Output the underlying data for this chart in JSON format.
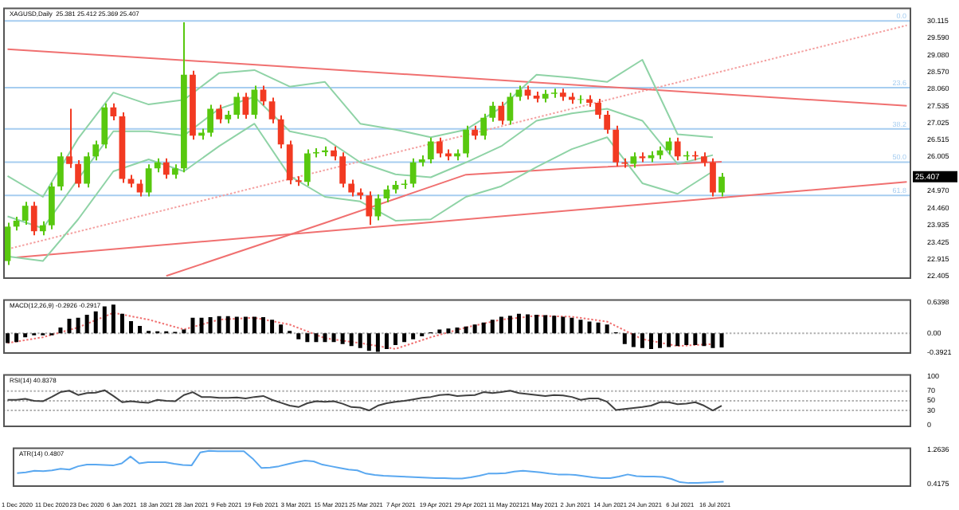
{
  "chart_data": [
    {
      "type": "candlestick",
      "title": "XAGUSD,Daily  25.381 25.412 25.369 25.407",
      "categories": [
        null,
        null,
        null,
        null,
        null,
        null,
        null,
        null,
        null,
        null,
        null,
        null,
        null,
        null,
        null,
        null,
        null,
        null,
        null,
        null,
        null,
        null,
        null,
        null,
        null,
        null,
        null,
        null,
        null,
        null,
        null,
        null,
        null,
        null,
        null,
        null,
        null,
        null,
        null,
        null,
        null,
        null,
        null,
        null,
        null,
        null,
        null,
        null,
        null,
        null,
        null,
        null,
        null,
        null,
        null,
        null,
        null,
        null,
        null,
        null,
        null,
        null,
        null,
        null,
        null,
        null,
        null,
        null,
        null,
        null,
        null,
        null,
        null,
        null,
        null,
        null,
        null,
        null,
        null,
        null,
        null,
        null,
        null,
        null,
        null,
        null,
        null,
        null,
        null,
        null,
        null,
        null,
        null,
        null,
        null,
        null,
        null,
        null,
        null,
        null,
        null,
        null,
        null
      ],
      "ohlc": [
        [
          22.86,
          24.02,
          22.74,
          23.9
        ],
        [
          23.9,
          24.2,
          23.78,
          24.08
        ],
        [
          24.08,
          24.65,
          23.96,
          24.53
        ],
        [
          24.53,
          24.65,
          23.64,
          23.76
        ],
        [
          23.76,
          24.06,
          23.64,
          23.94
        ],
        [
          23.94,
          25.23,
          23.82,
          25.11
        ],
        [
          25.11,
          26.14,
          24.99,
          26.02
        ],
        [
          26.02,
          27.46,
          25.67,
          25.79
        ],
        [
          25.79,
          25.91,
          25.08,
          25.2
        ],
        [
          25.2,
          26.14,
          25.08,
          26.02
        ],
        [
          26.02,
          26.5,
          25.9,
          26.38
        ],
        [
          26.38,
          27.62,
          26.26,
          27.5
        ],
        [
          27.5,
          27.62,
          27.11,
          27.23
        ],
        [
          27.23,
          27.35,
          25.22,
          25.34
        ],
        [
          25.34,
          25.46,
          25.08,
          25.2
        ],
        [
          25.2,
          25.32,
          24.81,
          24.93
        ],
        [
          24.93,
          25.78,
          24.81,
          25.66
        ],
        [
          25.66,
          25.96,
          25.54,
          25.84
        ],
        [
          25.84,
          25.96,
          25.35,
          25.47
        ],
        [
          25.47,
          25.78,
          25.35,
          25.66
        ],
        [
          25.66,
          30.07,
          25.54,
          28.49
        ],
        [
          28.49,
          28.61,
          26.53,
          26.65
        ],
        [
          26.65,
          26.86,
          26.53,
          26.74
        ],
        [
          26.74,
          27.58,
          26.62,
          27.46
        ],
        [
          27.46,
          27.58,
          27.02,
          27.14
        ],
        [
          27.14,
          27.4,
          27.02,
          27.28
        ],
        [
          27.28,
          27.94,
          27.16,
          27.82
        ],
        [
          27.82,
          27.94,
          27.16,
          27.28
        ],
        [
          27.28,
          28.16,
          27.16,
          28.04
        ],
        [
          28.04,
          28.16,
          27.56,
          27.68
        ],
        [
          27.68,
          27.8,
          27.02,
          27.14
        ],
        [
          27.14,
          27.26,
          26.26,
          26.38
        ],
        [
          26.38,
          26.5,
          25.18,
          25.3
        ],
        [
          25.3,
          25.42,
          25.13,
          25.25
        ],
        [
          25.25,
          26.23,
          25.13,
          26.11
        ],
        [
          26.11,
          26.27,
          25.99,
          26.15
        ],
        [
          26.15,
          26.32,
          26.03,
          26.2
        ],
        [
          26.2,
          26.32,
          25.9,
          26.02
        ],
        [
          26.02,
          26.14,
          25.08,
          25.2
        ],
        [
          25.2,
          25.32,
          24.81,
          24.93
        ],
        [
          24.93,
          25.05,
          24.72,
          24.84
        ],
        [
          24.84,
          24.96,
          23.95,
          24.21
        ],
        [
          24.21,
          24.87,
          24.09,
          24.75
        ],
        [
          24.75,
          25.14,
          24.63,
          25.02
        ],
        [
          25.02,
          25.28,
          24.9,
          25.16
        ],
        [
          25.16,
          25.32,
          25.04,
          25.2
        ],
        [
          25.2,
          25.96,
          25.08,
          25.84
        ],
        [
          25.84,
          26.05,
          25.72,
          25.93
        ],
        [
          25.93,
          26.59,
          25.81,
          26.47
        ],
        [
          26.47,
          26.59,
          25.99,
          26.11
        ],
        [
          26.11,
          26.23,
          25.9,
          26.02
        ],
        [
          26.02,
          26.23,
          25.9,
          26.11
        ],
        [
          26.11,
          26.95,
          25.99,
          26.83
        ],
        [
          26.83,
          26.95,
          26.53,
          26.65
        ],
        [
          26.65,
          27.31,
          26.53,
          27.19
        ],
        [
          27.19,
          27.67,
          27.07,
          27.55
        ],
        [
          27.55,
          27.67,
          26.98,
          27.1
        ],
        [
          27.1,
          27.94,
          26.98,
          27.82
        ],
        [
          27.82,
          28.16,
          27.7,
          28.04
        ],
        [
          28.04,
          28.16,
          27.74,
          27.86
        ],
        [
          27.86,
          27.98,
          27.65,
          27.77
        ],
        [
          27.77,
          28.03,
          27.65,
          27.91
        ],
        [
          27.91,
          28.07,
          27.79,
          27.95
        ],
        [
          27.95,
          28.07,
          27.7,
          27.82
        ],
        [
          27.82,
          27.94,
          27.61,
          27.73
        ],
        [
          27.73,
          27.87,
          27.61,
          27.75
        ],
        [
          27.75,
          27.87,
          27.52,
          27.64
        ],
        [
          27.64,
          27.76,
          27.16,
          27.28
        ],
        [
          27.28,
          27.4,
          26.71,
          26.83
        ],
        [
          26.83,
          26.95,
          25.72,
          25.84
        ],
        [
          25.84,
          25.96,
          25.68,
          25.8
        ],
        [
          25.8,
          26.14,
          25.68,
          26.02
        ],
        [
          26.02,
          26.14,
          25.85,
          25.97
        ],
        [
          25.97,
          26.18,
          25.85,
          26.06
        ],
        [
          26.06,
          26.32,
          25.94,
          26.2
        ],
        [
          26.2,
          26.59,
          26.08,
          26.47
        ],
        [
          26.47,
          26.59,
          25.9,
          26.02
        ],
        [
          26.02,
          26.18,
          25.9,
          26.06
        ],
        [
          26.06,
          26.18,
          25.9,
          26.02
        ],
        [
          26.02,
          26.14,
          25.72,
          25.84
        ],
        [
          25.84,
          25.96,
          24.81,
          24.93
        ],
        [
          24.93,
          25.52,
          24.81,
          25.407
        ],
        null,
        null,
        null,
        null,
        null,
        null,
        null,
        null,
        null,
        null,
        null,
        null,
        null,
        null,
        null,
        null,
        null,
        null,
        null,
        null,
        null
      ],
      "series": [
        {
          "type": "line",
          "color": "#8fd3a6",
          "values": [
            25.43,
            null,
            null,
            null,
            24.8,
            null,
            null,
            null,
            26.56,
            null,
            null,
            null,
            27.95,
            null,
            null,
            null,
            27.59,
            null,
            null,
            null,
            27.73,
            null,
            null,
            null,
            28.54,
            null,
            null,
            null,
            28.63,
            null,
            null,
            null,
            28.13,
            null,
            null,
            null,
            28.27,
            null,
            null,
            null,
            27.01,
            null,
            null,
            null,
            26.83,
            null,
            null,
            null,
            26.6,
            null,
            null,
            null,
            26.83,
            null,
            null,
            null,
            27.5,
            null,
            null,
            null,
            28.49,
            null,
            null,
            null,
            28.4,
            null,
            null,
            null,
            28.27,
            null,
            null,
            null,
            28.94,
            null,
            null,
            null,
            26.69,
            null,
            null,
            null,
            26.6,
            null,
            null,
            null,
            null,
            null,
            null,
            null,
            null,
            null,
            null,
            null,
            null,
            null,
            null,
            null,
            null,
            null,
            null,
            null,
            null,
            null,
            null
          ]
        },
        {
          "type": "line",
          "color": "#8fd3a6",
          "values": [
            24.21,
            null,
            null,
            null,
            23.85,
            null,
            null,
            null,
            25.34,
            null,
            null,
            null,
            26.78,
            null,
            null,
            null,
            26.78,
            null,
            null,
            null,
            26.65,
            null,
            null,
            null,
            27.46,
            null,
            null,
            null,
            27.82,
            null,
            null,
            null,
            26.78,
            null,
            null,
            null,
            26.56,
            null,
            null,
            null,
            25.84,
            null,
            null,
            null,
            25.48,
            null,
            null,
            null,
            25.39,
            null,
            null,
            null,
            25.84,
            null,
            null,
            null,
            26.33,
            null,
            null,
            null,
            27.1,
            null,
            null,
            null,
            27.32,
            null,
            null,
            null,
            27.46,
            null,
            null,
            null,
            27.1,
            null,
            null,
            null,
            25.79,
            null,
            null,
            null,
            26.06,
            null,
            null,
            null,
            null,
            null,
            null,
            null,
            null,
            null,
            null,
            null,
            null,
            null,
            null,
            null,
            null,
            null,
            null,
            null,
            null,
            null,
            null
          ]
        },
        {
          "type": "line",
          "color": "#8fd3a6",
          "values": [
            23.0,
            null,
            null,
            null,
            22.86,
            null,
            null,
            null,
            24.12,
            null,
            null,
            null,
            25.57,
            null,
            null,
            null,
            25.93,
            null,
            null,
            null,
            25.57,
            null,
            null,
            null,
            26.33,
            null,
            null,
            null,
            27.01,
            null,
            null,
            null,
            25.43,
            null,
            null,
            null,
            24.8,
            null,
            null,
            null,
            24.66,
            null,
            null,
            null,
            24.08,
            null,
            null,
            null,
            24.12,
            null,
            null,
            null,
            24.8,
            null,
            null,
            null,
            25.12,
            null,
            null,
            null,
            25.7,
            null,
            null,
            null,
            26.24,
            null,
            null,
            null,
            26.6,
            null,
            null,
            null,
            25.21,
            null,
            null,
            null,
            24.89,
            null,
            null,
            null,
            25.57,
            null,
            null,
            null,
            null,
            null,
            null,
            null,
            null,
            null,
            null,
            null,
            null,
            null,
            null,
            null,
            null,
            null,
            null,
            null,
            null,
            null,
            null
          ]
        },
        {
          "type": "line",
          "color": "#f07070",
          "values": [
            null,
            null,
            null,
            null,
            null,
            null,
            null,
            null,
            null,
            null,
            null,
            null,
            null,
            null,
            null,
            null,
            null,
            null,
            22.41,
            null,
            null,
            null,
            null,
            null,
            null,
            null,
            null,
            null,
            null,
            null,
            null,
            null,
            null,
            null,
            null,
            null,
            24.01,
            null,
            null,
            null,
            null,
            null,
            null,
            null,
            null,
            null,
            null,
            null,
            null,
            null,
            null,
            null,
            25.47,
            null,
            null,
            null,
            null,
            null,
            null,
            null,
            null,
            null,
            null,
            null,
            25.66,
            null,
            null,
            null,
            null,
            null,
            null,
            null,
            null,
            null,
            null,
            null,
            null,
            null,
            null,
            null,
            null,
            25.86,
            null,
            null,
            null,
            null,
            null,
            null,
            null,
            null,
            null,
            null,
            null,
            null,
            null,
            null,
            null,
            null,
            null,
            null,
            null,
            null,
            null
          ]
        },
        {
          "type": "line",
          "color": "#f07070",
          "values": [
            29.26,
            null,
            null,
            null,
            null,
            null,
            null,
            null,
            null,
            null,
            null,
            null,
            null,
            null,
            null,
            null,
            null,
            null,
            null,
            null,
            null,
            null,
            null,
            null,
            null,
            null,
            null,
            null,
            null,
            null,
            null,
            null,
            null,
            null,
            null,
            null,
            null,
            null,
            null,
            null,
            null,
            null,
            null,
            null,
            null,
            null,
            null,
            null,
            null,
            null,
            null,
            null,
            null,
            null,
            null,
            null,
            null,
            null,
            null,
            null,
            null,
            null,
            null,
            null,
            null,
            null,
            null,
            null,
            null,
            null,
            null,
            null,
            null,
            null,
            null,
            null,
            null,
            null,
            null,
            null,
            null,
            null,
            null,
            null,
            null,
            null,
            null,
            null,
            null,
            null,
            null,
            null,
            null,
            null,
            null,
            null,
            null,
            null,
            null,
            null,
            null,
            null,
            27.55
          ]
        },
        {
          "type": "line",
          "color": "#f07070",
          "values": [
            null,
            22.97,
            null,
            null,
            null,
            null,
            null,
            null,
            null,
            null,
            null,
            null,
            null,
            null,
            null,
            null,
            null,
            null,
            null,
            null,
            null,
            null,
            null,
            null,
            null,
            null,
            null,
            null,
            null,
            null,
            null,
            null,
            null,
            null,
            null,
            null,
            null,
            null,
            null,
            null,
            null,
            null,
            null,
            null,
            null,
            null,
            null,
            null,
            null,
            null,
            null,
            null,
            null,
            null,
            null,
            null,
            null,
            null,
            null,
            null,
            null,
            null,
            null,
            null,
            null,
            null,
            null,
            null,
            null,
            null,
            null,
            null,
            null,
            null,
            null,
            null,
            null,
            null,
            null,
            null,
            null,
            null,
            null,
            null,
            null,
            null,
            null,
            null,
            null,
            null,
            null,
            null,
            null,
            null,
            null,
            null,
            null,
            null,
            null,
            null,
            null,
            null,
            25.25
          ]
        },
        {
          "type": "line",
          "color": "#f4a0a0",
          "line_style": "dotted",
          "values": [
            23.22,
            null,
            null,
            null,
            null,
            null,
            null,
            null,
            null,
            null,
            null,
            null,
            null,
            null,
            null,
            null,
            null,
            null,
            null,
            null,
            null,
            null,
            null,
            null,
            null,
            null,
            null,
            null,
            null,
            null,
            null,
            null,
            null,
            null,
            null,
            null,
            null,
            null,
            null,
            null,
            null,
            null,
            null,
            null,
            null,
            null,
            null,
            null,
            null,
            null,
            null,
            null,
            null,
            null,
            null,
            null,
            null,
            null,
            null,
            null,
            null,
            null,
            null,
            null,
            null,
            null,
            null,
            null,
            null,
            null,
            null,
            null,
            null,
            null,
            null,
            null,
            null,
            null,
            null,
            null,
            null,
            null,
            null,
            null,
            null,
            null,
            null,
            null,
            null,
            null,
            null,
            null,
            null,
            null,
            null,
            null,
            null,
            null,
            null,
            null,
            null,
            null,
            29.98
          ]
        }
      ],
      "ylim": [
        22.32,
        30.52
      ],
      "yticks": [
        30.115,
        {
          "value": 29.59,
          "label": "29.590"
        },
        {
          "value": 29.08,
          "label": "29.080"
        },
        {
          "value": 28.57,
          "label": "28.570"
        },
        {
          "value": 28.06,
          "label": "28.060"
        },
        27.535,
        27.025,
        26.515,
        26.005,
        {
          "value": 24.97,
          "label": "24.970"
        },
        {
          "value": 24.46,
          "label": "24.460"
        },
        23.935,
        23.425,
        22.915,
        22.405
      ],
      "ref_lines": [
        {
          "axis": "y",
          "value": 30.115,
          "color": "#a6cdf0"
        },
        {
          "axis": "y",
          "value": 28.1,
          "color": "#a6cdf0"
        },
        {
          "axis": "y",
          "value": 26.85,
          "color": "#a6cdf0"
        },
        {
          "axis": "y",
          "value": 25.85,
          "color": "#a6cdf0"
        },
        {
          "axis": "y",
          "value": 24.84,
          "color": "#a6cdf0"
        }
      ],
      "annotations": [
        {
          "text": "0.0",
          "y": 30.115
        },
        {
          "text": "23.6",
          "y": 28.1
        },
        {
          "text": "38.2",
          "y": 26.85
        },
        {
          "text": "50.0",
          "y": 25.85
        },
        {
          "text": "61.8",
          "y": 24.84
        },
        "25.407"
      ],
      "tick_labels": "y"
    },
    {
      "type": "bar",
      "title": "MACD(12,26,9) -0.2926 -0.2917",
      "categories": [
        null,
        null,
        null,
        null,
        null,
        null,
        null,
        null,
        null,
        null,
        null,
        null,
        null,
        null,
        null,
        null,
        null,
        null,
        null,
        null,
        null,
        null,
        null,
        null,
        null,
        null,
        null,
        null,
        null,
        null,
        null,
        null,
        null,
        null,
        null,
        null,
        null,
        null,
        null,
        null,
        null,
        null,
        null,
        null,
        null,
        null,
        null,
        null,
        null,
        null,
        null,
        null,
        null,
        null,
        null,
        null,
        null,
        null,
        null,
        null,
        null,
        null,
        null,
        null,
        null,
        null,
        null,
        null,
        null,
        null,
        null,
        null,
        null,
        null,
        null,
        null,
        null,
        null,
        null,
        null,
        null,
        null,
        null,
        null,
        null,
        null,
        null,
        null,
        null,
        null,
        null,
        null,
        null,
        null,
        null,
        null,
        null,
        null,
        null,
        null,
        null,
        null,
        null
      ],
      "series": [
        {
          "type": "bar",
          "color": "#000000",
          "values": [
            -0.2,
            -0.18,
            -0.08,
            -0.04,
            -0.04,
            -0.04,
            0.12,
            0.3,
            0.32,
            0.38,
            0.45,
            0.55,
            0.59,
            0.4,
            0.25,
            0.15,
            0.05,
            0.04,
            0.04,
            0.03,
            0.08,
            0.32,
            0.32,
            0.33,
            0.35,
            0.35,
            0.34,
            0.34,
            0.34,
            0.33,
            0.28,
            0.18,
            0.05,
            -0.12,
            -0.18,
            -0.18,
            -0.18,
            -0.18,
            -0.22,
            -0.26,
            -0.3,
            -0.36,
            -0.38,
            -0.32,
            -0.24,
            -0.18,
            -0.12,
            -0.06,
            0.02,
            0.08,
            0.1,
            0.12,
            0.14,
            0.18,
            0.22,
            0.28,
            0.34,
            0.36,
            0.4,
            0.39,
            0.38,
            0.37,
            0.36,
            0.34,
            0.32,
            0.28,
            0.24,
            0.22,
            0.18,
            0.02,
            -0.22,
            -0.28,
            -0.3,
            -0.32,
            -0.3,
            -0.28,
            -0.26,
            -0.24,
            -0.24,
            -0.26,
            -0.3,
            -0.29,
            null,
            null,
            null,
            null,
            null,
            null,
            null,
            null,
            null,
            null,
            null,
            null,
            null,
            null,
            null,
            null,
            null,
            null,
            null,
            null,
            null
          ]
        },
        {
          "type": "line",
          "color": "#f07070",
          "line_style": "dotted",
          "values": [
            -0.2,
            null,
            null,
            null,
            -0.08,
            null,
            null,
            null,
            0.12,
            null,
            null,
            null,
            0.42,
            null,
            null,
            null,
            0.28,
            null,
            null,
            null,
            0.08,
            null,
            null,
            null,
            0.28,
            null,
            null,
            null,
            0.32,
            null,
            null,
            null,
            0.18,
            null,
            null,
            null,
            -0.1,
            null,
            null,
            null,
            -0.2,
            null,
            null,
            null,
            -0.32,
            null,
            null,
            null,
            -0.08,
            null,
            null,
            null,
            0.12,
            null,
            null,
            null,
            0.28,
            null,
            null,
            null,
            0.36,
            null,
            null,
            null,
            0.34,
            null,
            null,
            null,
            0.24,
            null,
            null,
            null,
            -0.12,
            null,
            null,
            null,
            -0.26,
            null,
            null,
            null,
            -0.22,
            null,
            null,
            null,
            null,
            null,
            null,
            null,
            null,
            null,
            null,
            null,
            null,
            null,
            null,
            null,
            null,
            null,
            null,
            null,
            null,
            null,
            null
          ]
        }
      ],
      "ylim": [
        -0.42,
        0.7
      ],
      "yticks": [
        0.6398,
        {
          "value": 0,
          "label": "0.00"
        },
        -0.3921
      ],
      "ref_lines": [
        {
          "axis": "y",
          "value": 0,
          "color": "#b0b0b0",
          "line_style": "dotted"
        }
      ],
      "tick_labels": "y"
    },
    {
      "type": "line",
      "title": "RSI(14) 40.8378",
      "categories": [
        null,
        null,
        null,
        null,
        null,
        null,
        null,
        null,
        null,
        null,
        null,
        null,
        null,
        null,
        null,
        null,
        null,
        null,
        null,
        null,
        null,
        null,
        null,
        null,
        null,
        null,
        null,
        null,
        null,
        null,
        null,
        null,
        null,
        null,
        null,
        null,
        null,
        null,
        null,
        null,
        null,
        null,
        null,
        null,
        null,
        null,
        null,
        null,
        null,
        null,
        null,
        null,
        null,
        null,
        null,
        null,
        null,
        null,
        null,
        null,
        null,
        null,
        null,
        null,
        null,
        null,
        null,
        null,
        null,
        null,
        null,
        null,
        null,
        null,
        null,
        null,
        null,
        null,
        null,
        null,
        null,
        null,
        null,
        null,
        null,
        null,
        null,
        null,
        null,
        null,
        null,
        null,
        null,
        null,
        null,
        null,
        null,
        null,
        null,
        null,
        null,
        null,
        null
      ],
      "color": "#404040",
      "values": [
        52,
        52,
        54,
        50,
        49,
        58,
        68,
        71,
        62,
        66,
        67,
        72,
        60,
        47,
        49,
        47,
        46,
        52,
        50,
        49,
        62,
        68,
        58,
        58,
        56,
        56,
        57,
        55,
        58,
        60,
        52,
        46,
        40,
        37,
        45,
        49,
        48,
        49,
        44,
        37,
        36,
        30,
        40,
        45,
        48,
        50,
        53,
        56,
        58,
        62,
        63,
        60,
        61,
        62,
        68,
        66,
        68,
        71,
        66,
        64,
        62,
        60,
        62,
        61,
        58,
        52,
        55,
        55,
        48,
        31,
        33,
        35,
        37,
        40,
        47,
        47,
        43,
        44,
        47,
        40,
        30,
        40,
        null,
        null,
        null,
        null,
        null,
        null,
        null,
        null,
        null,
        null,
        null,
        null,
        null,
        null,
        null,
        null,
        null,
        null,
        null,
        null,
        null
      ],
      "ylim": [
        -4.6,
        105.5
      ],
      "yticks": [
        100,
        70,
        50,
        30,
        0
      ],
      "ref_lines": [
        {
          "axis": "y",
          "value": 70,
          "color": "#b0b0b0",
          "line_style": "dotted"
        },
        {
          "axis": "y",
          "value": 50,
          "color": "#b0b0b0",
          "line_style": "dotted"
        },
        {
          "axis": "y",
          "value": 30,
          "color": "#b0b0b0",
          "line_style": "dotted"
        }
      ],
      "tick_labels": "y"
    },
    {
      "type": "line",
      "title": "ATR(14) 0.4807",
      "categories": [
        "1 Dec 2020",
        null,
        null,
        null,
        "11 Dec 2020",
        null,
        null,
        null,
        "23 Dec 2020",
        null,
        null,
        null,
        "6 Jan 2021",
        null,
        null,
        null,
        "18 Jan 2021",
        null,
        null,
        null,
        "28 Jan 2021",
        null,
        null,
        null,
        "9 Feb 2021",
        null,
        null,
        null,
        "19 Feb 2021",
        null,
        null,
        null,
        "3 Mar 2021",
        null,
        null,
        null,
        "15 Mar 2021",
        null,
        null,
        null,
        "25 Mar 2021",
        null,
        null,
        null,
        "7 Apr 2021",
        null,
        null,
        null,
        "19 Apr 2021",
        null,
        null,
        null,
        "29 Apr 2021",
        null,
        null,
        null,
        "11 May 2021",
        null,
        null,
        null,
        "21 May 2021",
        null,
        null,
        null,
        "2 Jun 2021",
        null,
        null,
        null,
        "14 Jun 2021",
        null,
        null,
        null,
        "24 Jun 2021",
        null,
        null,
        null,
        "6 Jul 2021",
        null,
        null,
        null,
        "16 Jul 2021",
        null,
        null,
        null,
        null,
        null,
        null,
        null,
        null,
        null,
        null,
        null,
        null,
        null,
        null,
        null,
        null,
        null,
        null,
        null,
        null,
        null,
        null
      ],
      "color": "#5aa8f0",
      "values": [
        0.69,
        0.71,
        0.75,
        0.74,
        0.76,
        0.8,
        0.78,
        0.86,
        0.9,
        0.9,
        0.89,
        0.88,
        0.93,
        1.1,
        0.93,
        0.96,
        0.96,
        0.96,
        0.92,
        0.89,
        0.88,
        1.2,
        1.24,
        1.23,
        1.23,
        1.23,
        1.23,
        1.05,
        0.82,
        0.83,
        0.86,
        0.91,
        0.96,
        1.0,
        0.98,
        0.9,
        0.86,
        0.82,
        0.78,
        0.76,
        0.68,
        0.65,
        0.63,
        0.62,
        0.61,
        0.6,
        0.59,
        0.58,
        0.57,
        0.57,
        0.56,
        0.56,
        0.59,
        0.63,
        0.68,
        0.68,
        0.69,
        0.73,
        0.75,
        0.73,
        0.71,
        0.68,
        0.66,
        0.66,
        0.65,
        0.62,
        0.59,
        0.57,
        0.57,
        0.61,
        0.66,
        0.62,
        0.61,
        0.61,
        0.6,
        0.55,
        0.47,
        0.45,
        0.45,
        0.46,
        0.47,
        0.48,
        null,
        null,
        null,
        null,
        null,
        null,
        null,
        null,
        null,
        null,
        null,
        null,
        null,
        null,
        null,
        null,
        null,
        null,
        null,
        null,
        null
      ],
      "ylim": [
        0.357,
        1.324
      ],
      "yticks": [
        1.2636,
        0.4175
      ]
    }
  ]
}
